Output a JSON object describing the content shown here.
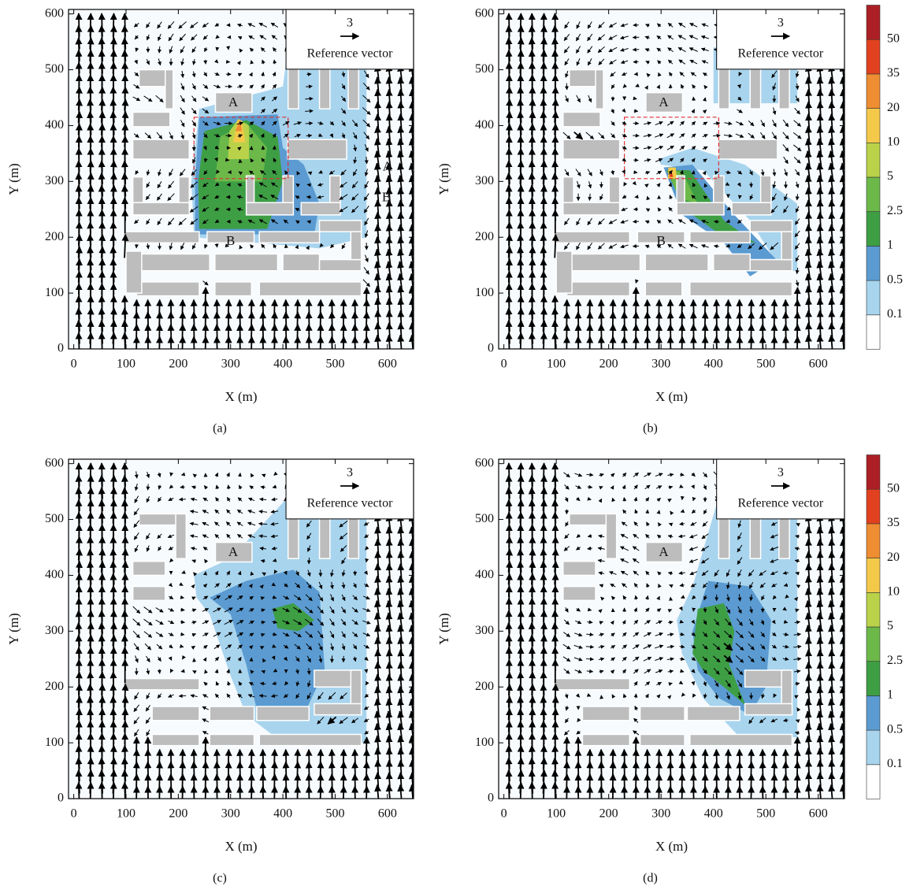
{
  "chart_data": [
    {
      "type": "contour",
      "caption": "(a)",
      "xlabel": "X (m)",
      "ylabel": "Y (m)",
      "xlim": [
        -10,
        650
      ],
      "ylim": [
        0,
        608
      ],
      "xticks": [
        0,
        100,
        200,
        300,
        400,
        500,
        600
      ],
      "yticks": [
        0,
        100,
        200,
        300,
        400,
        500,
        600
      ],
      "reference_vector": {
        "value": 3,
        "label": "Reference vector"
      },
      "annotations": [
        "A",
        "B",
        "A",
        "B"
      ]
    },
    {
      "type": "contour",
      "caption": "(b)",
      "xlabel": "X (m)",
      "ylabel": "Y (m)",
      "xlim": [
        -10,
        650
      ],
      "ylim": [
        0,
        608
      ],
      "xticks": [
        0,
        100,
        200,
        300,
        400,
        500,
        600
      ],
      "yticks": [
        0,
        100,
        200,
        300,
        400,
        500,
        600
      ],
      "reference_vector": {
        "value": 3,
        "label": "Reference vector"
      },
      "annotations": [
        "A",
        "B"
      ],
      "colorbar": {
        "levels": [
          0.1,
          0.5,
          1,
          2.5,
          5,
          10,
          20,
          35,
          50
        ],
        "colors": [
          "#ffffff",
          "#a8d4ee",
          "#5b9bd1",
          "#3e9e44",
          "#6cb94a",
          "#b9d24a",
          "#f4c94a",
          "#ef8d32",
          "#e2411f",
          "#ac1f24"
        ]
      }
    },
    {
      "type": "contour",
      "caption": "(c)",
      "xlabel": "X (m)",
      "ylabel": "Y (m)",
      "xlim": [
        -10,
        650
      ],
      "ylim": [
        0,
        608
      ],
      "xticks": [
        0,
        100,
        200,
        300,
        400,
        500,
        600
      ],
      "yticks": [
        0,
        100,
        200,
        300,
        400,
        500,
        600
      ],
      "reference_vector": {
        "value": 3,
        "label": "Reference vector"
      },
      "annotations": [
        "A"
      ]
    },
    {
      "type": "contour",
      "caption": "(d)",
      "xlabel": "X (m)",
      "ylabel": "Y (m)",
      "xlim": [
        -10,
        650
      ],
      "ylim": [
        0,
        608
      ],
      "xticks": [
        0,
        100,
        200,
        300,
        400,
        500,
        600
      ],
      "yticks": [
        0,
        100,
        200,
        300,
        400,
        500,
        600
      ],
      "reference_vector": {
        "value": 3,
        "label": "Reference vector"
      },
      "annotations": [
        "A"
      ],
      "colorbar": {
        "levels": [
          0.1,
          0.5,
          1,
          2.5,
          5,
          10,
          20,
          35,
          50
        ],
        "colors": [
          "#ffffff",
          "#a8d4ee",
          "#5b9bd1",
          "#3e9e44",
          "#6cb94a",
          "#b9d24a",
          "#f4c94a",
          "#ef8d32",
          "#e2411f",
          "#ac1f24"
        ]
      }
    }
  ]
}
